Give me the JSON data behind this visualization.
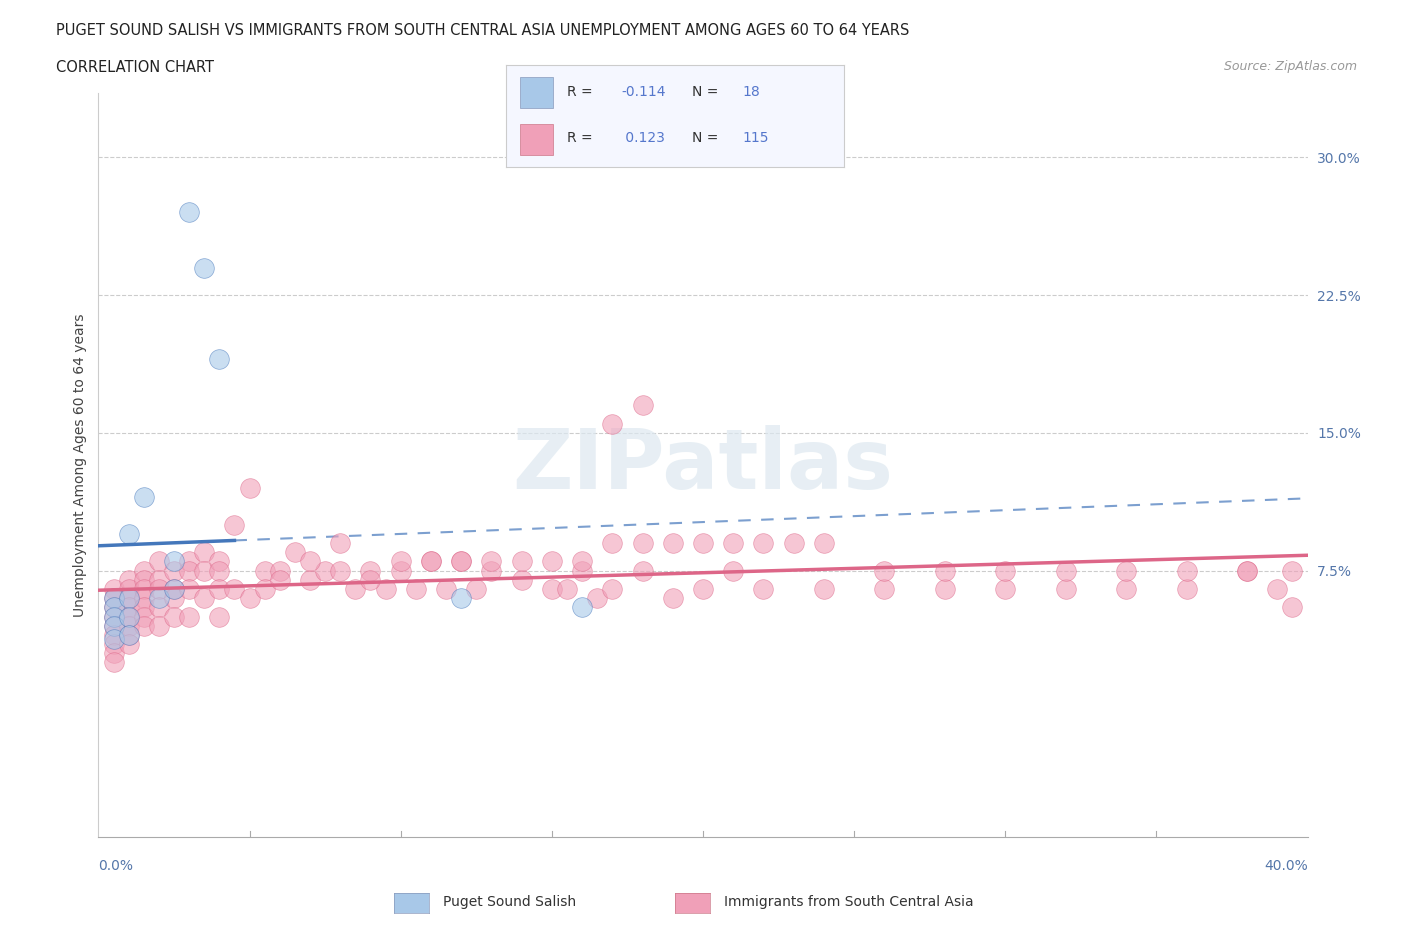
{
  "title_line1": "PUGET SOUND SALISH VS IMMIGRANTS FROM SOUTH CENTRAL ASIA UNEMPLOYMENT AMONG AGES 60 TO 64 YEARS",
  "title_line2": "CORRELATION CHART",
  "source": "Source: ZipAtlas.com",
  "ylabel": "Unemployment Among Ages 60 to 64 years",
  "legend1_label": "Puget Sound Salish",
  "legend2_label": "Immigrants from South Central Asia",
  "R1": -0.114,
  "N1": 18,
  "R2": 0.123,
  "N2": 115,
  "ytick_values": [
    0.075,
    0.15,
    0.225,
    0.3
  ],
  "color_blue": "#a8c8e8",
  "color_pink": "#f0a0b8",
  "color_blue_line": "#4477bb",
  "color_pink_line": "#dd6688",
  "background": "#ffffff",
  "watermark_color": "#dde8f0",
  "blue_scatter_x": [
    0.005,
    0.005,
    0.005,
    0.005,
    0.005,
    0.01,
    0.01,
    0.01,
    0.01,
    0.015,
    0.02,
    0.025,
    0.025,
    0.03,
    0.035,
    0.04,
    0.12,
    0.16
  ],
  "blue_scatter_y": [
    0.06,
    0.055,
    0.05,
    0.045,
    0.038,
    0.095,
    0.06,
    0.05,
    0.04,
    0.115,
    0.06,
    0.08,
    0.065,
    0.27,
    0.24,
    0.19,
    0.06,
    0.055
  ],
  "pink_scatter_x": [
    0.005,
    0.005,
    0.005,
    0.005,
    0.005,
    0.005,
    0.005,
    0.005,
    0.005,
    0.01,
    0.01,
    0.01,
    0.01,
    0.01,
    0.01,
    0.01,
    0.01,
    0.015,
    0.015,
    0.015,
    0.015,
    0.015,
    0.015,
    0.015,
    0.02,
    0.02,
    0.02,
    0.02,
    0.02,
    0.025,
    0.025,
    0.025,
    0.025,
    0.03,
    0.03,
    0.03,
    0.03,
    0.035,
    0.035,
    0.035,
    0.04,
    0.04,
    0.04,
    0.04,
    0.045,
    0.045,
    0.05,
    0.05,
    0.055,
    0.055,
    0.06,
    0.065,
    0.07,
    0.075,
    0.08,
    0.085,
    0.09,
    0.095,
    0.1,
    0.105,
    0.11,
    0.115,
    0.12,
    0.125,
    0.13,
    0.14,
    0.15,
    0.155,
    0.16,
    0.165,
    0.17,
    0.18,
    0.19,
    0.2,
    0.21,
    0.22,
    0.24,
    0.26,
    0.28,
    0.3,
    0.32,
    0.34,
    0.36,
    0.38,
    0.39,
    0.395,
    0.17,
    0.18,
    0.06,
    0.07,
    0.08,
    0.09,
    0.1,
    0.11,
    0.12,
    0.13,
    0.14,
    0.15,
    0.16,
    0.17,
    0.18,
    0.19,
    0.2,
    0.21,
    0.22,
    0.23,
    0.24,
    0.26,
    0.28,
    0.3,
    0.32,
    0.34,
    0.36,
    0.38,
    0.395
  ],
  "pink_scatter_y": [
    0.065,
    0.06,
    0.055,
    0.05,
    0.045,
    0.04,
    0.035,
    0.03,
    0.025,
    0.07,
    0.065,
    0.06,
    0.055,
    0.05,
    0.045,
    0.04,
    0.035,
    0.075,
    0.07,
    0.065,
    0.06,
    0.055,
    0.05,
    0.045,
    0.08,
    0.07,
    0.065,
    0.055,
    0.045,
    0.075,
    0.065,
    0.06,
    0.05,
    0.08,
    0.075,
    0.065,
    0.05,
    0.085,
    0.075,
    0.06,
    0.08,
    0.075,
    0.065,
    0.05,
    0.1,
    0.065,
    0.12,
    0.06,
    0.075,
    0.065,
    0.075,
    0.085,
    0.07,
    0.075,
    0.075,
    0.065,
    0.075,
    0.065,
    0.075,
    0.065,
    0.08,
    0.065,
    0.08,
    0.065,
    0.075,
    0.07,
    0.065,
    0.065,
    0.075,
    0.06,
    0.065,
    0.075,
    0.06,
    0.065,
    0.075,
    0.065,
    0.065,
    0.065,
    0.065,
    0.065,
    0.065,
    0.065,
    0.065,
    0.075,
    0.065,
    0.055,
    0.155,
    0.165,
    0.07,
    0.08,
    0.09,
    0.07,
    0.08,
    0.08,
    0.08,
    0.08,
    0.08,
    0.08,
    0.08,
    0.09,
    0.09,
    0.09,
    0.09,
    0.09,
    0.09,
    0.09,
    0.09,
    0.075,
    0.075,
    0.075,
    0.075,
    0.075,
    0.075,
    0.075,
    0.075
  ],
  "xlim": [
    0.0,
    0.4
  ],
  "ylim": [
    -0.07,
    0.335
  ]
}
